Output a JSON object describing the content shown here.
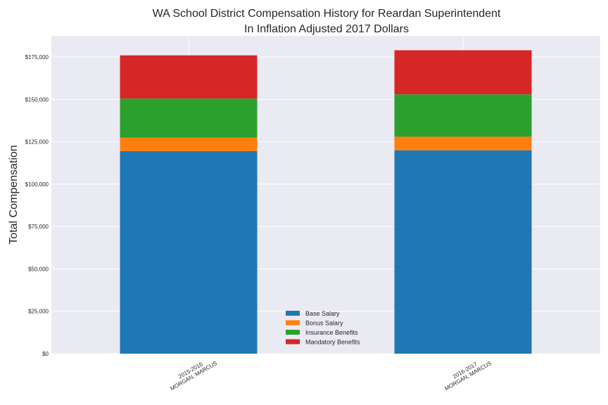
{
  "chart_data": {
    "type": "bar",
    "stacked": true,
    "title": "WA School District Compensation History for Reardan Superintendent",
    "subtitle": "In Inflation Adjusted 2017 Dollars",
    "xlabel": "",
    "ylabel": "Total Compensation",
    "categories": [
      [
        "2015-2016",
        "MORGAN, MARCUS"
      ],
      [
        "2016-2017",
        "MORGAN, MARCUS"
      ]
    ],
    "series": [
      {
        "name": "Base Salary",
        "color": "#1f77b4",
        "values": [
          119500,
          120000
        ]
      },
      {
        "name": "Bonus Salary",
        "color": "#ff7f0e",
        "values": [
          8000,
          8000
        ]
      },
      {
        "name": "Insurance Benefits",
        "color": "#2ca02c",
        "values": [
          23000,
          25000
        ]
      },
      {
        "name": "Mandatory Benefits",
        "color": "#d62728",
        "values": [
          25500,
          26000
        ]
      }
    ],
    "ylim": [
      0,
      187500
    ],
    "yticks": [
      0,
      25000,
      50000,
      75000,
      100000,
      125000,
      150000,
      175000
    ],
    "ytick_labels": [
      "$0",
      "$25,000",
      "$50,000",
      "$75,000",
      "$100,000",
      "$125,000",
      "$150,000",
      "$175,000"
    ],
    "grid": true,
    "legend_position": "lower center"
  }
}
